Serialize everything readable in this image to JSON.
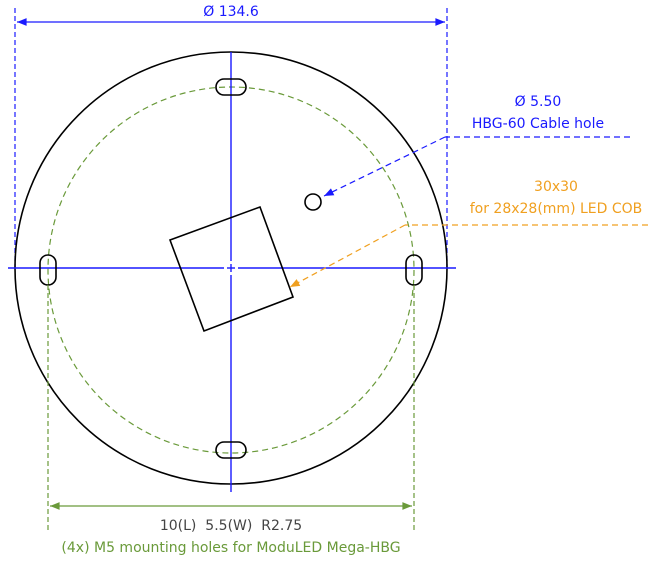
{
  "dimensions": {
    "diameter": "Ø 134.6"
  },
  "cable_hole": {
    "size": "Ø 5.50",
    "label": "HBG-60 Cable hole"
  },
  "led_cob": {
    "size": "30x30",
    "label": "for 28x28(mm) LED COB"
  },
  "mounting_holes": {
    "size": "10(L)  5.5(W)  R2.75",
    "label": "(4x) M5 mounting holes for ModuLED Mega-HBG"
  }
}
